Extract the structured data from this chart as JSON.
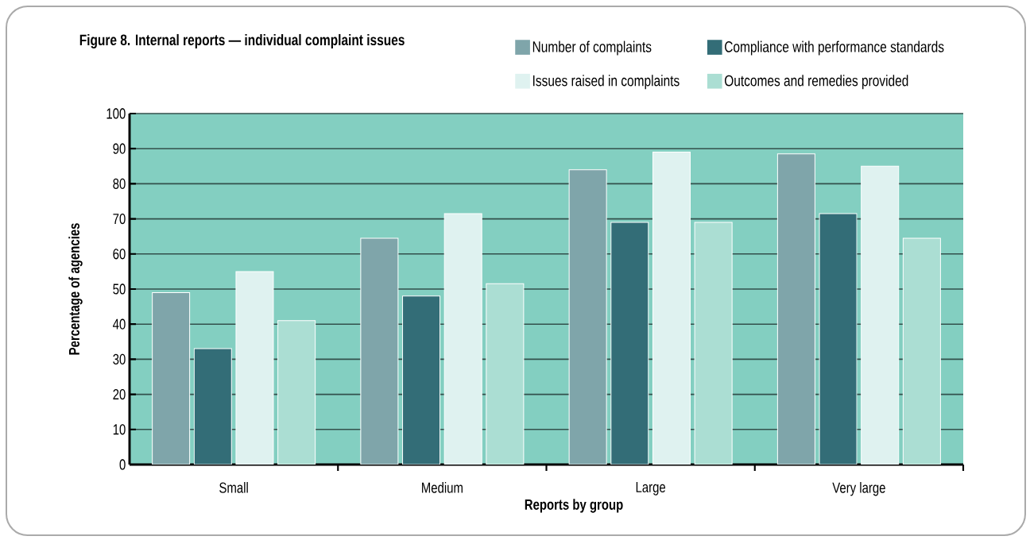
{
  "chart_data": {
    "type": "bar",
    "title": "Figure 8. Internal reports — individual complaint issues",
    "xlabel": "Reports by group",
    "ylabel": "Percentage of agencies",
    "categories": [
      "Small",
      "Medium",
      "Large",
      "Very large"
    ],
    "series": [
      {
        "name": "Number of complaints",
        "color": "#7fa5aa",
        "values": [
          49,
          64.5,
          84,
          88.5
        ]
      },
      {
        "name": "Compliance with performance standards",
        "color": "#336d77",
        "values": [
          33,
          48,
          69,
          71.5
        ]
      },
      {
        "name": "Issues raised in complaints",
        "color": "#dff2f0",
        "values": [
          55,
          71.5,
          89,
          85
        ]
      },
      {
        "name": "Outcomes and remedies provided",
        "color": "#abded3",
        "values": [
          41,
          51.5,
          69,
          64.5
        ]
      }
    ],
    "ylim": [
      0,
      100
    ],
    "yticks": [
      0,
      10,
      20,
      30,
      40,
      50,
      60,
      70,
      80,
      90,
      100
    ],
    "grid": "y",
    "legend": "top right"
  }
}
